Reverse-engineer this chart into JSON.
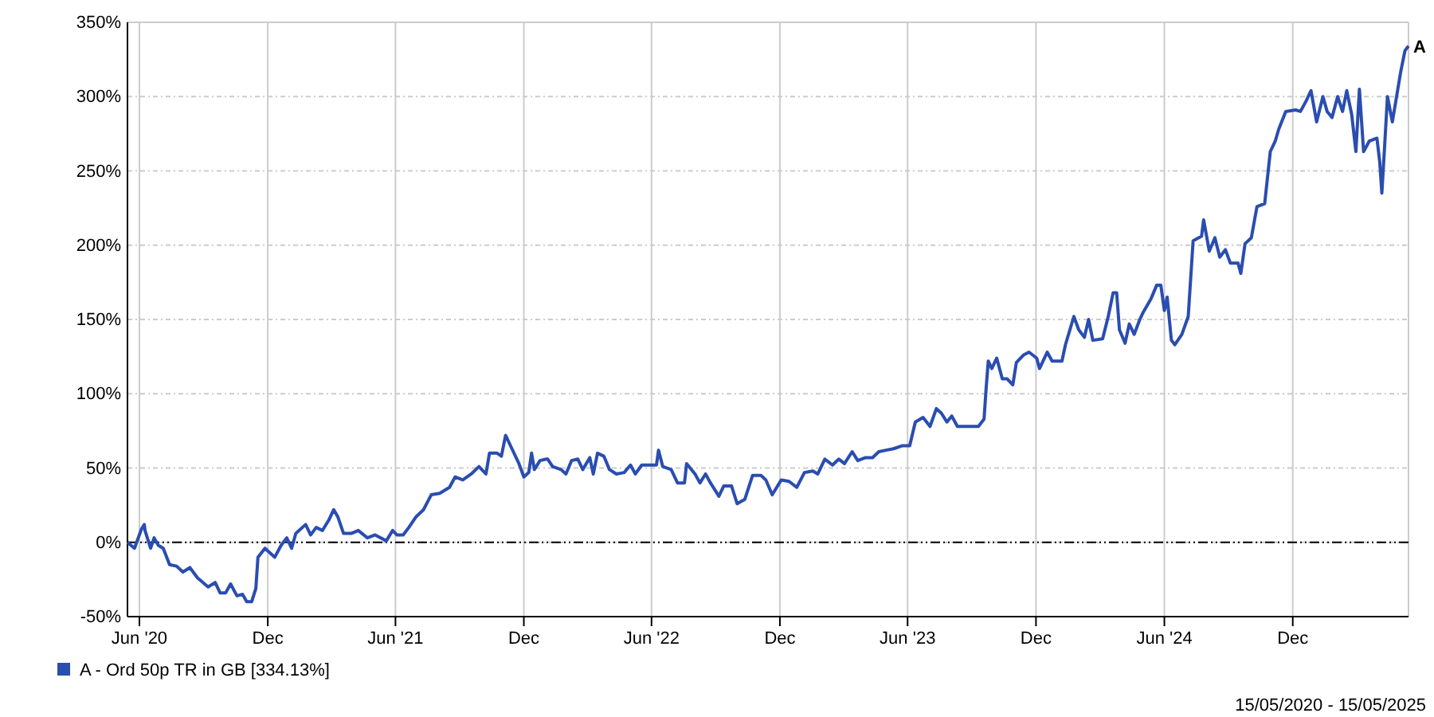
{
  "chart_data": {
    "type": "line",
    "xlim": [
      "2020-05-15",
      "2025-05-15"
    ],
    "ylim": [
      -50,
      350
    ],
    "xticks": [
      {
        "value": "2020-06-01",
        "label": "Jun '20"
      },
      {
        "value": "2020-12-01",
        "label": "Dec"
      },
      {
        "value": "2021-06-01",
        "label": "Jun '21"
      },
      {
        "value": "2021-12-01",
        "label": "Dec"
      },
      {
        "value": "2022-06-01",
        "label": "Jun '22"
      },
      {
        "value": "2022-12-01",
        "label": "Dec"
      },
      {
        "value": "2023-06-01",
        "label": "Jun '23"
      },
      {
        "value": "2023-12-01",
        "label": "Dec"
      },
      {
        "value": "2024-06-01",
        "label": "Jun '24"
      },
      {
        "value": "2024-12-01",
        "label": "Dec"
      }
    ],
    "yticks": [
      {
        "value": -50,
        "label": "-50%"
      },
      {
        "value": 0,
        "label": "0%"
      },
      {
        "value": 50,
        "label": "50%"
      },
      {
        "value": 100,
        "label": "100%"
      },
      {
        "value": 150,
        "label": "150%"
      },
      {
        "value": 200,
        "label": "200%"
      },
      {
        "value": 250,
        "label": "250%"
      },
      {
        "value": 300,
        "label": "300%"
      },
      {
        "value": 350,
        "label": "350%"
      }
    ],
    "grid": true,
    "legend": "bottom left",
    "line_style": "solid",
    "marker": "none",
    "ref_lines": [
      {
        "axis": "y",
        "value": 0,
        "color": "#000000",
        "line_style": "dashed"
      }
    ],
    "annotations": [
      "A",
      "15/05/2020 - 15/05/2025"
    ],
    "series": [
      {
        "name": "A - Ord 50p TR in GB [334.13%]",
        "color": "#2a4db0",
        "x": [
          "2020-05-15",
          "2020-05-25",
          "2020-06-04",
          "2020-06-08",
          "2020-06-09",
          "2020-06-17",
          "2020-06-22",
          "2020-06-28",
          "2020-07-05",
          "2020-07-14",
          "2020-07-24",
          "2020-08-02",
          "2020-08-12",
          "2020-08-23",
          "2020-09-07",
          "2020-09-17",
          "2020-09-24",
          "2020-10-02",
          "2020-10-09",
          "2020-10-18",
          "2020-10-26",
          "2020-11-01",
          "2020-11-08",
          "2020-11-14",
          "2020-11-17",
          "2020-11-27",
          "2020-12-11",
          "2020-12-20",
          "2020-12-28",
          "2021-01-04",
          "2021-01-10",
          "2021-01-24",
          "2021-01-31",
          "2021-02-08",
          "2021-02-17",
          "2021-02-26",
          "2021-03-05",
          "2021-03-11",
          "2021-03-19",
          "2021-03-30",
          "2021-04-09",
          "2021-04-22",
          "2021-05-03",
          "2021-05-19",
          "2021-05-28",
          "2021-06-03",
          "2021-06-12",
          "2021-06-20",
          "2021-06-30",
          "2021-07-11",
          "2021-07-22",
          "2021-08-03",
          "2021-08-17",
          "2021-08-25",
          "2021-09-05",
          "2021-09-17",
          "2021-09-28",
          "2021-10-08",
          "2021-10-13",
          "2021-10-24",
          "2021-10-30",
          "2021-11-05",
          "2021-11-14",
          "2021-11-24",
          "2021-12-01",
          "2021-12-08",
          "2021-12-12",
          "2021-12-16",
          "2021-12-24",
          "2022-01-02",
          "2022-01-04",
          "2022-01-11",
          "2022-01-23",
          "2022-01-30",
          "2022-02-07",
          "2022-02-16",
          "2022-02-23",
          "2022-03-05",
          "2022-03-10",
          "2022-03-16",
          "2022-03-25",
          "2022-04-02",
          "2022-04-12",
          "2022-04-23",
          "2022-05-02",
          "2022-05-09",
          "2022-05-18",
          "2022-06-08",
          "2022-06-11",
          "2022-06-17",
          "2022-06-29",
          "2022-07-08",
          "2022-07-18",
          "2022-07-21",
          "2022-08-02",
          "2022-08-09",
          "2022-08-17",
          "2022-08-24",
          "2022-09-05",
          "2022-09-12",
          "2022-09-23",
          "2022-10-01",
          "2022-10-12",
          "2022-10-23",
          "2022-11-04",
          "2022-11-11",
          "2022-11-20",
          "2022-12-03",
          "2022-12-14",
          "2022-12-25",
          "2023-01-05",
          "2023-01-17",
          "2023-01-24",
          "2023-02-03",
          "2023-02-14",
          "2023-02-23",
          "2023-03-03",
          "2023-03-14",
          "2023-03-22",
          "2023-04-02",
          "2023-04-12",
          "2023-04-21",
          "2023-05-01",
          "2023-05-12",
          "2023-05-24",
          "2023-06-04",
          "2023-06-12",
          "2023-06-23",
          "2023-07-03",
          "2023-07-12",
          "2023-07-19",
          "2023-07-27",
          "2023-08-03",
          "2023-08-11",
          "2023-08-19",
          "2023-09-10",
          "2023-09-18",
          "2023-09-21",
          "2023-09-24",
          "2023-09-29",
          "2023-10-06",
          "2023-10-14",
          "2023-10-21",
          "2023-10-29",
          "2023-11-03",
          "2023-11-13",
          "2023-11-21",
          "2023-12-02",
          "2023-12-06",
          "2023-12-17",
          "2023-12-24",
          "2024-01-07",
          "2024-01-12",
          "2024-01-24",
          "2024-01-31",
          "2024-02-08",
          "2024-02-14",
          "2024-02-20",
          "2024-03-05",
          "2024-03-13",
          "2024-03-20",
          "2024-03-25",
          "2024-03-29",
          "2024-04-06",
          "2024-04-12",
          "2024-04-19",
          "2024-04-27",
          "2024-05-02",
          "2024-05-13",
          "2024-05-21",
          "2024-05-27",
          "2024-06-01",
          "2024-06-05",
          "2024-06-11",
          "2024-06-16",
          "2024-06-26",
          "2024-07-05",
          "2024-07-12",
          "2024-07-24",
          "2024-07-27",
          "2024-08-04",
          "2024-08-12",
          "2024-08-19",
          "2024-08-27",
          "2024-09-03",
          "2024-09-14",
          "2024-09-18",
          "2024-09-24",
          "2024-10-03",
          "2024-10-11",
          "2024-10-22",
          "2024-10-30",
          "2024-11-06",
          "2024-11-11",
          "2024-11-21",
          "2024-12-05",
          "2024-12-12",
          "2024-12-20",
          "2024-12-27",
          "2025-01-04",
          "2025-01-13",
          "2025-01-19",
          "2025-01-26",
          "2025-02-03",
          "2025-02-10",
          "2025-02-16",
          "2025-02-23",
          "2025-03-01",
          "2025-03-06",
          "2025-03-12",
          "2025-03-20",
          "2025-03-31",
          "2025-04-04",
          "2025-04-07",
          "2025-04-11",
          "2025-04-15",
          "2025-04-22",
          "2025-04-28",
          "2025-05-04",
          "2025-05-10",
          "2025-05-15"
        ],
        "values": [
          0,
          -4,
          9,
          12,
          8,
          -4,
          3,
          -2,
          -4,
          -15,
          -16,
          -20,
          -17,
          -24,
          -30,
          -27,
          -34,
          -34,
          -28,
          -36,
          -35,
          -40,
          -40,
          -31,
          -10,
          -4,
          -10,
          -2,
          3,
          -4,
          6,
          12,
          5,
          10,
          8,
          15,
          22,
          17,
          6,
          6,
          8,
          3,
          5,
          1,
          8,
          5,
          5,
          10,
          17,
          22,
          32,
          33,
          37,
          44,
          42,
          46,
          51,
          46,
          60,
          60,
          58,
          72,
          63,
          53,
          44,
          47,
          60,
          49,
          55,
          56,
          56,
          51,
          49,
          46,
          55,
          56,
          49,
          57,
          46,
          60,
          58,
          49,
          46,
          47,
          52,
          46,
          52,
          52,
          62,
          51,
          49,
          40,
          40,
          53,
          46,
          40,
          46,
          40,
          31,
          38,
          38,
          26,
          29,
          45,
          45,
          42,
          32,
          42,
          41,
          37,
          47,
          48,
          46,
          56,
          52,
          56,
          53,
          61,
          55,
          57,
          57,
          61,
          62,
          63,
          65,
          65,
          81,
          84,
          78,
          90,
          87,
          81,
          85,
          78,
          78,
          78,
          83,
          104,
          122,
          117,
          124,
          110,
          110,
          106,
          121,
          126,
          128,
          124,
          117,
          128,
          122,
          122,
          133,
          152,
          143,
          138,
          150,
          136,
          137,
          152,
          168,
          168,
          143,
          134,
          147,
          140,
          150,
          155,
          164,
          173,
          173,
          156,
          165,
          136,
          133,
          140,
          152,
          203,
          206,
          217,
          196,
          205,
          192,
          197,
          188,
          188,
          181,
          201,
          205,
          226,
          228,
          263,
          270,
          278,
          290,
          291,
          290,
          297,
          304,
          283,
          300,
          290,
          286,
          300,
          290,
          304,
          288,
          263,
          305,
          263,
          270,
          272,
          256,
          235,
          267,
          300,
          283,
          300,
          317,
          331,
          334
        ]
      }
    ]
  }
}
